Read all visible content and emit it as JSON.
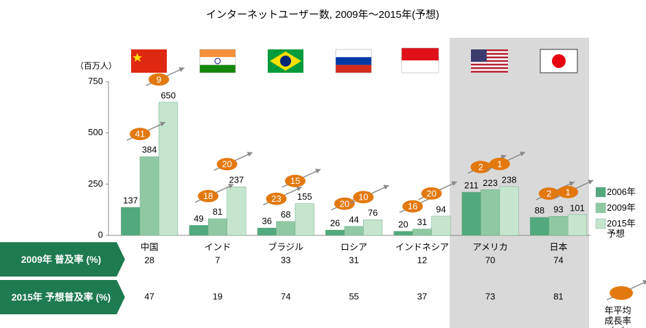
{
  "chart_data": {
    "type": "bar",
    "title": "インターネットユーザー数, 2009年～2015年(予想)",
    "unit_label": "（百万人）",
    "categories": [
      "中国",
      "インド",
      "ブラジル",
      "ロシア",
      "インドネシア",
      "アメリカ",
      "日本"
    ],
    "series": [
      {
        "name": "2006年",
        "color": "#52a97d",
        "values": [
          137,
          49,
          36,
          26,
          20,
          211,
          88
        ]
      },
      {
        "name": "2009年",
        "color": "#8fc9a3",
        "values": [
          384,
          81,
          68,
          44,
          31,
          223,
          93
        ]
      },
      {
        "name": "2015年予想",
        "color": "#c6e5cf",
        "values": [
          650,
          237,
          155,
          76,
          94,
          238,
          101
        ]
      }
    ],
    "ylim": [
      0,
      750
    ],
    "yticks": [
      0,
      250,
      500,
      750
    ],
    "growth_2006_2009": [
      41,
      18,
      23,
      20,
      16,
      2,
      2
    ],
    "growth_2009_2015": [
      9,
      20,
      15,
      10,
      20,
      1,
      1
    ],
    "growth_legend": "年平均成長率（%）",
    "badge_color": "#e2790f",
    "table": {
      "rows": [
        {
          "label": "2009年 普及率 (%)",
          "values": [
            28,
            7,
            33,
            31,
            12,
            70,
            74
          ]
        },
        {
          "label": "2015年 予想普及率 (%)",
          "values": [
            47,
            19,
            74,
            55,
            37,
            73,
            81
          ]
        }
      ]
    }
  }
}
